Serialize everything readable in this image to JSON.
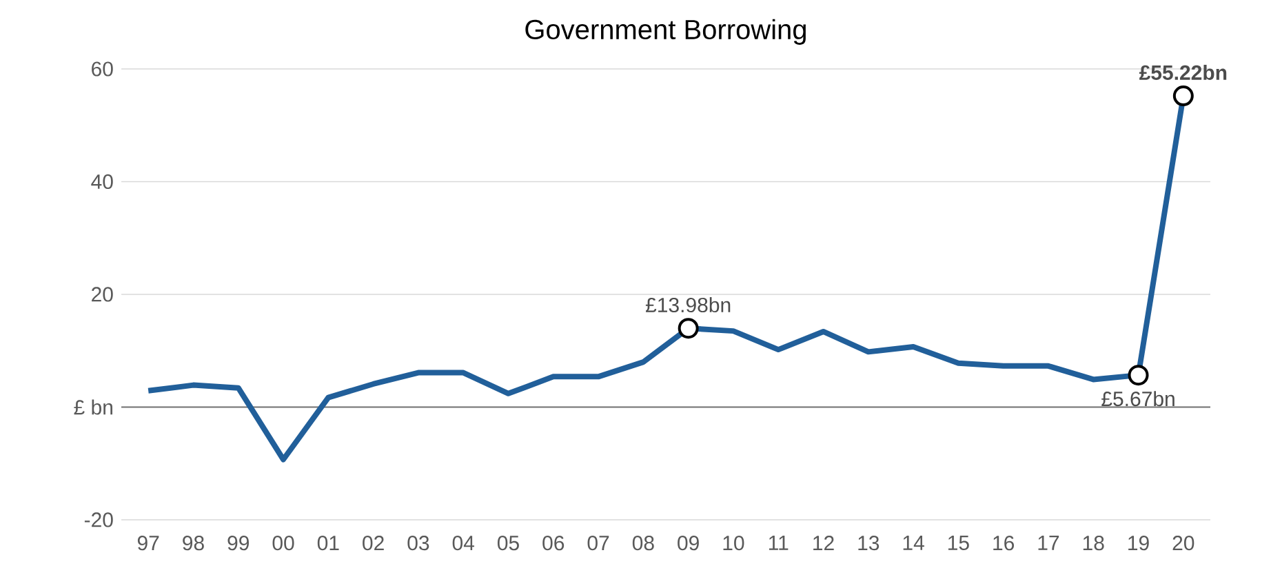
{
  "chart_data": {
    "type": "line",
    "title": "Government Borrowing",
    "categories": [
      "97",
      "98",
      "99",
      "00",
      "01",
      "02",
      "03",
      "04",
      "05",
      "06",
      "07",
      "08",
      "09",
      "10",
      "11",
      "12",
      "13",
      "14",
      "15",
      "16",
      "17",
      "18",
      "19",
      "20"
    ],
    "series": [
      {
        "color": "#215f9a",
        "values": [
          2.9,
          3.9,
          3.4,
          -9.3,
          1.7,
          4.1,
          6.1,
          6.1,
          2.4,
          5.4,
          5.4,
          8.0,
          13.98,
          13.5,
          10.2,
          13.4,
          9.8,
          10.7,
          7.8,
          7.3,
          7.3,
          4.9,
          5.67,
          55.22
        ]
      }
    ],
    "ylim": [
      -20,
      60
    ],
    "yticks": [
      -20,
      {
        "value": 0,
        "label": "£ bn"
      },
      20,
      40,
      60
    ],
    "grid": "y",
    "annotations": [
      {
        "text": "£13.98bn",
        "x": "09",
        "y": 13.98
      },
      {
        "text": "£5.67bn",
        "x": "19",
        "y": 5.67
      },
      {
        "text": "**£55.22bn**",
        "x": "20",
        "y": 55.22
      }
    ]
  }
}
